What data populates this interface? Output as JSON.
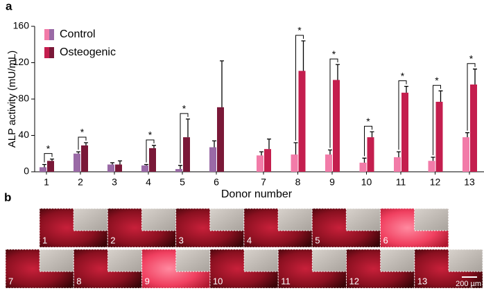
{
  "panel_labels": [
    "a",
    "b"
  ],
  "chart_data": {
    "type": "bar",
    "ylabel": "ALP activity (mU/mL)",
    "xlabel": "Donor number",
    "categories": [
      "1",
      "2",
      "3",
      "4",
      "5",
      "6",
      "7",
      "8",
      "9",
      "10",
      "11",
      "12",
      "13"
    ],
    "series": [
      {
        "name": "Control",
        "colors": [
          "#9a6aa6",
          "#9a6aa6",
          "#9a6aa6",
          "#9a6aa6",
          "#9a6aa6",
          "#9a6aa6",
          "#f27ba8",
          "#f27ba8",
          "#f27ba8",
          "#f27ba8",
          "#f27ba8",
          "#f27ba8",
          "#f27ba8"
        ],
        "values": [
          5,
          20,
          8,
          7,
          3,
          27,
          18,
          19,
          19,
          10,
          16,
          12,
          38
        ],
        "errors": [
          3,
          2,
          2,
          1,
          4,
          7,
          4,
          13,
          5,
          5,
          6,
          4,
          5
        ]
      },
      {
        "name": "Osteogenic",
        "colors": [
          "#7a1838",
          "#7a1838",
          "#7a1838",
          "#7a1838",
          "#7a1838",
          "#7a1838",
          "#c41e4e",
          "#c41e4e",
          "#c41e4e",
          "#c41e4e",
          "#c41e4e",
          "#c41e4e",
          "#c41e4e"
        ],
        "values": [
          12,
          29,
          8,
          26,
          38,
          71,
          25,
          111,
          101,
          38,
          87,
          77,
          96
        ],
        "errors": [
          2,
          3,
          4,
          3,
          20,
          51,
          11,
          33,
          17,
          6,
          7,
          12,
          17
        ]
      }
    ],
    "significance": [
      "*",
      "*",
      null,
      "*",
      "*",
      null,
      null,
      "*",
      "*",
      "*",
      "*",
      "*",
      "*"
    ],
    "ylim": [
      0,
      160
    ],
    "yticks": [
      0,
      40,
      80,
      120,
      160
    ],
    "legend": "upper left"
  },
  "images": {
    "labels": [
      "1",
      "2",
      "3",
      "4",
      "5",
      "6",
      "7",
      "8",
      "9",
      "10",
      "11",
      "12",
      "13"
    ],
    "bright": [
      false,
      false,
      false,
      false,
      false,
      true,
      false,
      false,
      true,
      false,
      false,
      false,
      false
    ],
    "scale_bar": "200 µm"
  }
}
